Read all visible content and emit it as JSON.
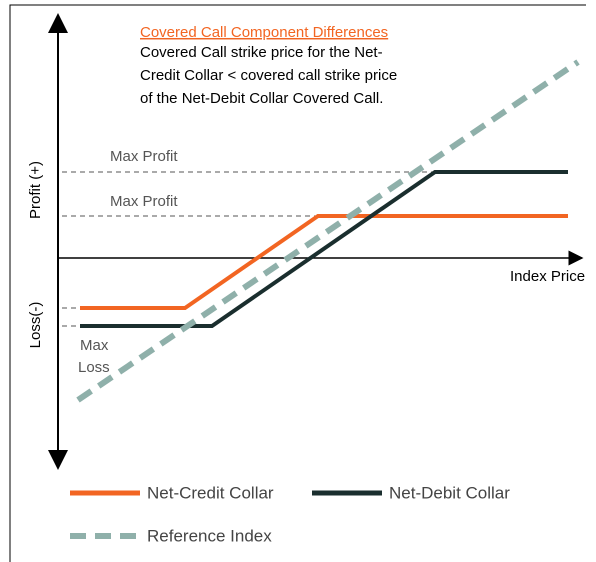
{
  "title": "Covered Call Component Differences",
  "description": [
    "Covered Call strike price for the Net-",
    "Credit Collar < covered call strike price",
    "of the Net-Debit Collar Covered Call."
  ],
  "y_axis": {
    "top_label": "Profit (+)",
    "bottom_label": "Loss(-)"
  },
  "x_axis": {
    "label": "Index Price"
  },
  "annotations": {
    "max_profit_1": "Max Profit",
    "max_profit_2": "Max Profit",
    "max_loss": [
      "Max",
      "Loss"
    ]
  },
  "legend": [
    "Net-Credit Collar",
    "Net-Debit Collar",
    "Reference Index"
  ]
}
